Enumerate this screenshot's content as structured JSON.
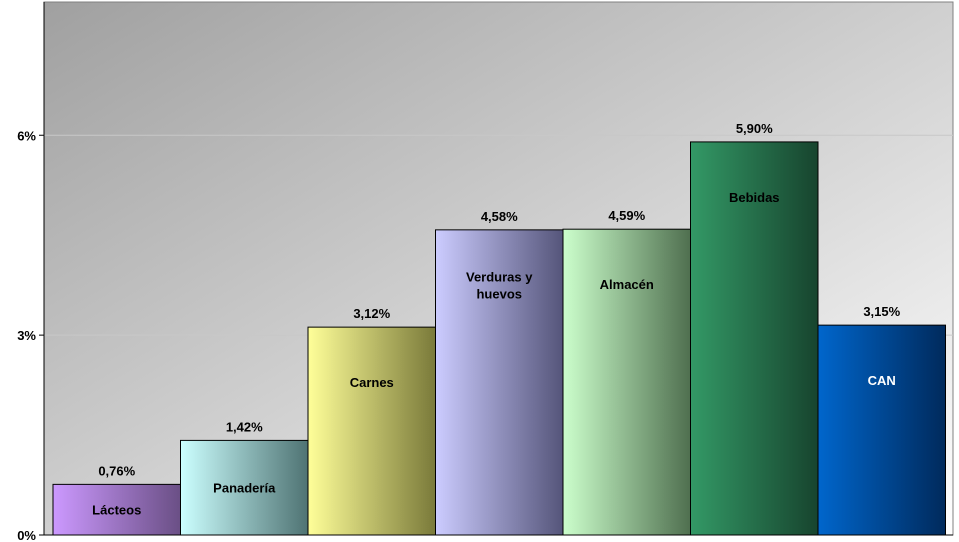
{
  "chart_data": {
    "type": "bar",
    "categories": [
      "Lácteos",
      "Panadería",
      "Carnes",
      "Verduras y huevos",
      "Almacén",
      "Bebidas",
      "CAN"
    ],
    "category_label_lines": [
      [
        "Lácteos"
      ],
      [
        "Panadería"
      ],
      [
        "Carnes"
      ],
      [
        "Verduras y",
        "huevos"
      ],
      [
        "Almacén"
      ],
      [
        "Bebidas"
      ],
      [
        "CAN"
      ]
    ],
    "values": [
      0.76,
      1.42,
      3.12,
      4.58,
      4.59,
      5.9,
      3.15
    ],
    "value_labels": [
      "0,76%",
      "1,42%",
      "3,12%",
      "4,58%",
      "4,59%",
      "5,90%",
      "3,15%"
    ],
    "title": "",
    "xlabel": "",
    "ylabel": "",
    "ylim": [
      0,
      8
    ],
    "y_ticks": [
      0,
      3,
      6
    ],
    "y_tick_labels": [
      "0%",
      "3%",
      "6%"
    ],
    "grid": true,
    "legend": "none",
    "bar_colors": [
      [
        "#cc99ff",
        "#6a4f85"
      ],
      [
        "#ccffff",
        "#4f7373"
      ],
      [
        "#ffff99",
        "#7a7a3a"
      ],
      [
        "#ccccff",
        "#55557a"
      ],
      [
        "#ccffcc",
        "#4f6f4f"
      ],
      [
        "#339966",
        "#17442e"
      ],
      [
        "#0066cc",
        "#002a5c"
      ]
    ],
    "background_colors": [
      "#a0a0a0",
      "#ffffff"
    ],
    "gridline_color": "#c8c8c8"
  }
}
